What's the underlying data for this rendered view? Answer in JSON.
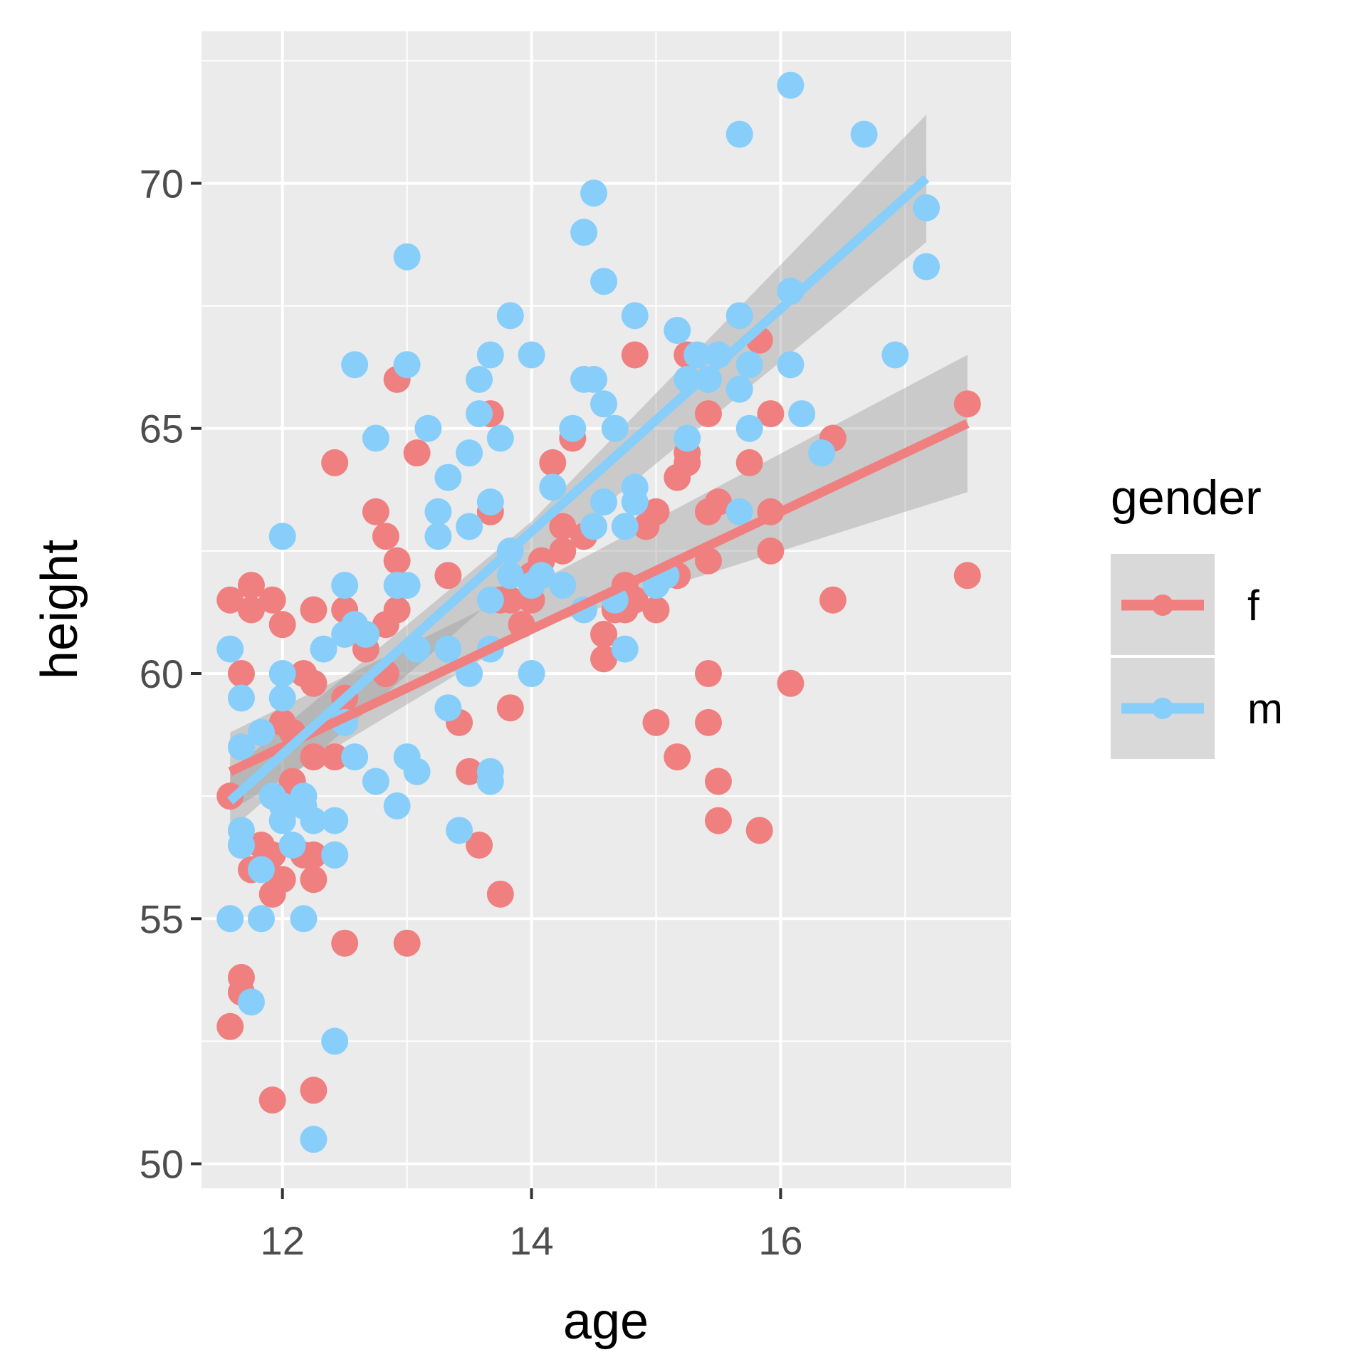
{
  "colors": {
    "panel_bg": "#EBEBEB",
    "grid": "#FFFFFF",
    "tick": "#333333",
    "ribbon": "#999999",
    "legend_key_bg": "#D9D9D9"
  },
  "chart_data": {
    "type": "scatter",
    "title": "",
    "xlabel": "age",
    "ylabel": "height",
    "xlim": [
      11.35,
      17.85
    ],
    "ylim": [
      49.5,
      73.1
    ],
    "x_ticks": [
      12,
      14,
      16
    ],
    "x_tick_labels": [
      "12",
      "14",
      "16"
    ],
    "x_minor_ticks": [
      13,
      15,
      17
    ],
    "y_ticks": [
      50,
      55,
      60,
      65,
      70
    ],
    "y_tick_labels": [
      "50",
      "55",
      "60",
      "65",
      "70"
    ],
    "y_minor_ticks": [
      52.5,
      57.5,
      62.5,
      67.5,
      72.5
    ],
    "grid": true,
    "legend": {
      "title": "gender",
      "position": "right",
      "entries": [
        {
          "label": "f",
          "color": "#F08080"
        },
        {
          "label": "m",
          "color": "#87CEFA"
        }
      ]
    },
    "series": [
      {
        "name": "f",
        "color": "#F08080",
        "points": [
          [
            11.58,
            61.5
          ],
          [
            11.67,
            60.0
          ],
          [
            11.75,
            61.8
          ],
          [
            11.75,
            61.3
          ],
          [
            11.92,
            61.5
          ],
          [
            11.58,
            57.5
          ],
          [
            11.67,
            56.5
          ],
          [
            11.75,
            56.0
          ],
          [
            11.83,
            56.5
          ],
          [
            11.92,
            56.3
          ],
          [
            11.92,
            55.5
          ],
          [
            12.0,
            55.8
          ],
          [
            11.58,
            52.8
          ],
          [
            11.67,
            53.8
          ],
          [
            11.67,
            53.5
          ],
          [
            11.92,
            51.3
          ],
          [
            12.0,
            61.0
          ],
          [
            12.17,
            60.0
          ],
          [
            12.25,
            59.8
          ],
          [
            12.25,
            61.3
          ],
          [
            12.0,
            59.0
          ],
          [
            12.08,
            58.8
          ],
          [
            12.08,
            57.8
          ],
          [
            12.17,
            56.3
          ],
          [
            12.25,
            56.3
          ],
          [
            12.25,
            55.8
          ],
          [
            12.25,
            58.3
          ],
          [
            12.25,
            51.5
          ],
          [
            12.42,
            64.3
          ],
          [
            12.5,
            61.3
          ],
          [
            12.42,
            58.3
          ],
          [
            12.5,
            59.5
          ],
          [
            12.42,
            56.3
          ],
          [
            12.5,
            54.5
          ],
          [
            12.67,
            60.5
          ],
          [
            12.75,
            63.3
          ],
          [
            12.83,
            62.8
          ],
          [
            12.83,
            60.0
          ],
          [
            12.83,
            61.0
          ],
          [
            12.92,
            62.3
          ],
          [
            12.92,
            61.3
          ],
          [
            12.92,
            66.0
          ],
          [
            13.0,
            54.5
          ],
          [
            13.08,
            64.5
          ],
          [
            13.33,
            62.0
          ],
          [
            13.42,
            59.0
          ],
          [
            13.5,
            58.0
          ],
          [
            13.58,
            56.5
          ],
          [
            13.67,
            65.3
          ],
          [
            13.67,
            63.3
          ],
          [
            13.75,
            55.5
          ],
          [
            13.75,
            61.5
          ],
          [
            13.83,
            59.3
          ],
          [
            13.83,
            61.5
          ],
          [
            13.92,
            61.0
          ],
          [
            14.0,
            62.0
          ],
          [
            14.0,
            61.5
          ],
          [
            14.08,
            62.3
          ],
          [
            14.17,
            64.3
          ],
          [
            14.25,
            63.0
          ],
          [
            14.25,
            62.5
          ],
          [
            14.33,
            64.8
          ],
          [
            14.42,
            62.8
          ],
          [
            14.58,
            60.8
          ],
          [
            14.58,
            60.3
          ],
          [
            14.67,
            61.3
          ],
          [
            14.75,
            61.8
          ],
          [
            14.75,
            61.3
          ],
          [
            14.83,
            61.5
          ],
          [
            14.83,
            66.5
          ],
          [
            14.92,
            63.0
          ],
          [
            15.0,
            63.3
          ],
          [
            15.0,
            61.3
          ],
          [
            15.0,
            59.0
          ],
          [
            15.17,
            64.0
          ],
          [
            15.17,
            62.0
          ],
          [
            15.17,
            58.3
          ],
          [
            15.25,
            66.5
          ],
          [
            15.25,
            64.5
          ],
          [
            15.25,
            64.3
          ],
          [
            15.42,
            63.3
          ],
          [
            15.42,
            60.0
          ],
          [
            15.42,
            59.0
          ],
          [
            15.42,
            65.3
          ],
          [
            15.5,
            63.5
          ],
          [
            15.5,
            57.8
          ],
          [
            15.5,
            57.0
          ],
          [
            15.42,
            62.3
          ],
          [
            15.75,
            64.3
          ],
          [
            15.83,
            66.8
          ],
          [
            15.83,
            56.8
          ],
          [
            15.92,
            63.3
          ],
          [
            15.92,
            62.5
          ],
          [
            15.92,
            65.3
          ],
          [
            16.08,
            59.8
          ],
          [
            16.42,
            64.8
          ],
          [
            16.42,
            61.5
          ],
          [
            17.5,
            65.5
          ],
          [
            17.5,
            62.0
          ]
        ]
      },
      {
        "name": "m",
        "color": "#87CEFA",
        "points": [
          [
            11.58,
            60.5
          ],
          [
            11.58,
            55.0
          ],
          [
            11.67,
            59.5
          ],
          [
            11.67,
            58.5
          ],
          [
            11.67,
            56.8
          ],
          [
            11.67,
            56.5
          ],
          [
            11.75,
            53.3
          ],
          [
            11.83,
            58.8
          ],
          [
            11.83,
            56.0
          ],
          [
            11.83,
            55.0
          ],
          [
            11.92,
            57.5
          ],
          [
            12.0,
            62.8
          ],
          [
            12.0,
            60.0
          ],
          [
            12.0,
            59.5
          ],
          [
            12.0,
            57.3
          ],
          [
            12.0,
            57.0
          ],
          [
            12.08,
            56.5
          ],
          [
            12.17,
            57.5
          ],
          [
            12.17,
            57.3
          ],
          [
            12.17,
            55.0
          ],
          [
            12.25,
            57.0
          ],
          [
            12.25,
            50.5
          ],
          [
            12.33,
            60.5
          ],
          [
            12.42,
            57.0
          ],
          [
            12.42,
            56.3
          ],
          [
            12.42,
            52.5
          ],
          [
            12.5,
            61.8
          ],
          [
            12.5,
            60.8
          ],
          [
            12.5,
            59.0
          ],
          [
            12.58,
            66.3
          ],
          [
            12.58,
            61.0
          ],
          [
            12.58,
            58.3
          ],
          [
            12.67,
            60.8
          ],
          [
            12.75,
            64.8
          ],
          [
            12.75,
            57.8
          ],
          [
            12.92,
            61.8
          ],
          [
            12.92,
            57.3
          ],
          [
            13.0,
            68.5
          ],
          [
            13.0,
            66.3
          ],
          [
            13.0,
            61.8
          ],
          [
            13.0,
            58.3
          ],
          [
            13.08,
            58.0
          ],
          [
            13.08,
            60.5
          ],
          [
            13.17,
            65.0
          ],
          [
            13.25,
            63.3
          ],
          [
            13.25,
            62.8
          ],
          [
            13.33,
            64.0
          ],
          [
            13.33,
            60.5
          ],
          [
            13.33,
            59.3
          ],
          [
            13.42,
            56.8
          ],
          [
            13.5,
            64.5
          ],
          [
            13.5,
            63.0
          ],
          [
            13.5,
            60.0
          ],
          [
            13.58,
            66.0
          ],
          [
            13.58,
            65.3
          ],
          [
            13.67,
            66.5
          ],
          [
            13.67,
            63.5
          ],
          [
            13.67,
            61.5
          ],
          [
            13.67,
            60.5
          ],
          [
            13.67,
            58.0
          ],
          [
            13.67,
            57.8
          ],
          [
            13.75,
            64.8
          ],
          [
            13.83,
            67.3
          ],
          [
            13.83,
            62.5
          ],
          [
            13.83,
            62.0
          ],
          [
            14.0,
            66.5
          ],
          [
            14.0,
            61.8
          ],
          [
            14.0,
            60.0
          ],
          [
            14.08,
            62.0
          ],
          [
            14.17,
            63.8
          ],
          [
            14.25,
            61.8
          ],
          [
            14.33,
            65.0
          ],
          [
            14.42,
            69.0
          ],
          [
            14.42,
            66.0
          ],
          [
            14.42,
            61.3
          ],
          [
            14.5,
            69.8
          ],
          [
            14.5,
            66.0
          ],
          [
            14.5,
            63.0
          ],
          [
            14.58,
            68.0
          ],
          [
            14.58,
            65.5
          ],
          [
            14.58,
            63.5
          ],
          [
            14.67,
            65.0
          ],
          [
            14.67,
            61.5
          ],
          [
            14.75,
            63.0
          ],
          [
            14.75,
            60.5
          ],
          [
            14.83,
            67.3
          ],
          [
            14.83,
            63.8
          ],
          [
            14.83,
            63.5
          ],
          [
            15.0,
            61.8
          ],
          [
            15.08,
            62.0
          ],
          [
            15.17,
            67.0
          ],
          [
            15.25,
            66.0
          ],
          [
            15.25,
            64.8
          ],
          [
            15.33,
            66.5
          ],
          [
            15.42,
            66.0
          ],
          [
            15.5,
            66.5
          ],
          [
            15.67,
            71.0
          ],
          [
            15.67,
            67.3
          ],
          [
            15.67,
            65.8
          ],
          [
            15.67,
            63.3
          ],
          [
            15.75,
            66.3
          ],
          [
            15.75,
            65.0
          ],
          [
            16.08,
            72.0
          ],
          [
            16.08,
            67.8
          ],
          [
            16.08,
            66.3
          ],
          [
            16.17,
            65.3
          ],
          [
            16.33,
            64.5
          ],
          [
            16.67,
            71.0
          ],
          [
            16.92,
            66.5
          ],
          [
            17.17,
            69.5
          ],
          [
            17.17,
            68.3
          ]
        ]
      }
    ],
    "fits": [
      {
        "series": "f",
        "method": "lm",
        "x": [
          11.58,
          17.5
        ],
        "y": [
          58.0,
          65.1
        ],
        "ribbon": {
          "x": [
            11.58,
            14.0,
            17.5
          ],
          "lower": [
            57.2,
            60.9,
            63.7
          ],
          "upper": [
            58.8,
            61.8,
            66.5
          ]
        }
      },
      {
        "series": "m",
        "method": "lm",
        "x": [
          11.58,
          17.17
        ],
        "y": [
          57.4,
          70.1
        ],
        "ribbon": {
          "x": [
            11.58,
            14.0,
            17.17
          ],
          "lower": [
            56.8,
            62.2,
            68.8
          ],
          "upper": [
            58.0,
            63.1,
            71.4
          ]
        }
      }
    ]
  }
}
